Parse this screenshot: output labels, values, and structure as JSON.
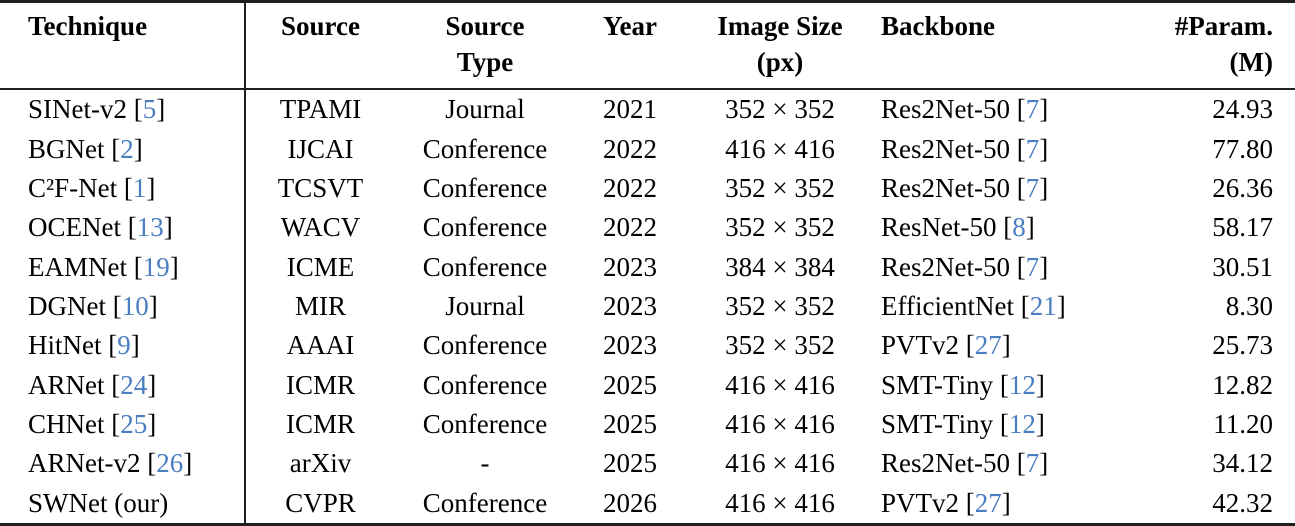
{
  "table": {
    "citation_color": "#4a7ec0",
    "text_color": "#000000",
    "rule_color": "#1f1f1f",
    "columns": [
      {
        "label": "Technique",
        "sub": ""
      },
      {
        "label": "Source",
        "sub": ""
      },
      {
        "label": "Source",
        "sub": "Type"
      },
      {
        "label": "Year",
        "sub": ""
      },
      {
        "label": "Image Size",
        "sub": "(px)"
      },
      {
        "label": "Backbone",
        "sub": ""
      },
      {
        "label": "#Param.",
        "sub": "(M)"
      }
    ],
    "rows": [
      {
        "technique": {
          "name": "SINet-v2",
          "cite": "5"
        },
        "source": "TPAMI",
        "source_type": "Journal",
        "year": "2021",
        "image_size": "352 × 352",
        "backbone": {
          "name": "Res2Net-50",
          "cite": "7"
        },
        "params": "24.93"
      },
      {
        "technique": {
          "name": "BGNet",
          "cite": "2"
        },
        "source": "IJCAI",
        "source_type": "Conference",
        "year": "2022",
        "image_size": "416 × 416",
        "backbone": {
          "name": "Res2Net-50",
          "cite": "7"
        },
        "params": "77.80"
      },
      {
        "technique": {
          "name": "C²F-Net",
          "cite": "1"
        },
        "source": "TCSVT",
        "source_type": "Conference",
        "year": "2022",
        "image_size": "352 × 352",
        "backbone": {
          "name": "Res2Net-50",
          "cite": "7"
        },
        "params": "26.36"
      },
      {
        "technique": {
          "name": "OCENet",
          "cite": "13"
        },
        "source": "WACV",
        "source_type": "Conference",
        "year": "2022",
        "image_size": "352 × 352",
        "backbone": {
          "name": "ResNet-50",
          "cite": "8"
        },
        "params": "58.17"
      },
      {
        "technique": {
          "name": "EAMNet",
          "cite": "19"
        },
        "source": "ICME",
        "source_type": "Conference",
        "year": "2023",
        "image_size": "384 × 384",
        "backbone": {
          "name": "Res2Net-50",
          "cite": "7"
        },
        "params": "30.51"
      },
      {
        "technique": {
          "name": "DGNet",
          "cite": "10"
        },
        "source": "MIR",
        "source_type": "Journal",
        "year": "2023",
        "image_size": "352 × 352",
        "backbone": {
          "name": "EfficientNet",
          "cite": "21"
        },
        "params": "8.30"
      },
      {
        "technique": {
          "name": "HitNet",
          "cite": "9"
        },
        "source": "AAAI",
        "source_type": "Conference",
        "year": "2023",
        "image_size": "352 × 352",
        "backbone": {
          "name": "PVTv2",
          "cite": "27"
        },
        "params": "25.73"
      },
      {
        "technique": {
          "name": "ARNet",
          "cite": "24"
        },
        "source": "ICMR",
        "source_type": "Conference",
        "year": "2025",
        "image_size": "416 × 416",
        "backbone": {
          "name": "SMT-Tiny",
          "cite": "12"
        },
        "params": "12.82"
      },
      {
        "technique": {
          "name": "CHNet",
          "cite": "25"
        },
        "source": "ICMR",
        "source_type": "Conference",
        "year": "2025",
        "image_size": "416 × 416",
        "backbone": {
          "name": "SMT-Tiny",
          "cite": "12"
        },
        "params": "11.20"
      },
      {
        "technique": {
          "name": "ARNet-v2",
          "cite": "26"
        },
        "source": "arXiv",
        "source_type": "-",
        "year": "2025",
        "image_size": "416 × 416",
        "backbone": {
          "name": "Res2Net-50",
          "cite": "7"
        },
        "params": "34.12"
      },
      {
        "technique": {
          "name": "SWNet (our)",
          "cite": null
        },
        "source": "CVPR",
        "source_type": "Conference",
        "year": "2026",
        "image_size": "416 × 416",
        "backbone": {
          "name": "PVTv2",
          "cite": "27"
        },
        "params": "42.32"
      }
    ]
  }
}
